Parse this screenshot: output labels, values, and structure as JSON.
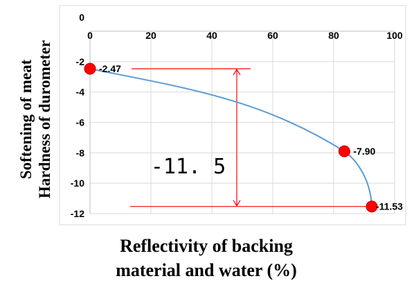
{
  "chart_data": {
    "type": "line",
    "title": "",
    "xlabel_lines": [
      "Reflectivity of backing",
      "material and water (%)"
    ],
    "ylabel_lines": [
      "Softening of meat",
      "Hardness of durometer"
    ],
    "xlim": [
      0,
      100
    ],
    "ylim": [
      -12,
      0
    ],
    "x_ticks": [
      0,
      20,
      40,
      60,
      80,
      100
    ],
    "y_ticks": [
      0,
      -2,
      -4,
      -6,
      -8,
      -10,
      -12
    ],
    "x_tick_labels": [
      "0",
      "20",
      "40",
      "60",
      "80",
      "100"
    ],
    "y_tick_labels": [
      "0",
      "-2",
      "-4",
      "-6",
      "-8",
      "-10",
      "-12"
    ],
    "grid": true,
    "x_axis_position": "top",
    "series": [
      {
        "points": [
          {
            "x": 0,
            "y": -2.47,
            "label": "-2.47"
          },
          {
            "x": 83.5,
            "y": -7.9,
            "label": "-7.90"
          },
          {
            "x": 92.5,
            "y": -11.53,
            "label": "-11.53"
          }
        ],
        "line_color": "#5b9bd5",
        "marker_color": "#ff0000"
      }
    ],
    "annotation": {
      "text": "-11. 5",
      "from_y": -2.47,
      "to_y": -11.53,
      "color": "#ff0000"
    }
  }
}
